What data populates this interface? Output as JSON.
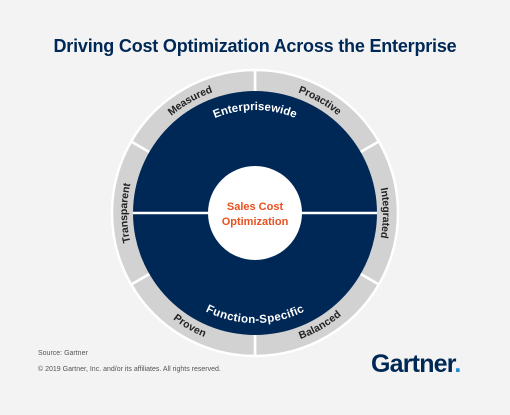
{
  "title": "Driving Cost Optimization Across the Enterprise",
  "center": {
    "line1": "Sales Cost",
    "line2": "Optimization"
  },
  "inner": {
    "top": "Enterprisewide",
    "bottom": "Function-Specific"
  },
  "ring": [
    "Proactive",
    "Integrated",
    "Balanced",
    "Proven",
    "Transparent",
    "Measured"
  ],
  "footer": {
    "source": "Source: Gartner",
    "copyright": "© 2019 Gartner, Inc. and/or its affiliates. All rights reserved."
  },
  "logo": {
    "text": "Gartner",
    "dot": "."
  },
  "colors": {
    "navy": "#002856",
    "ring": "#d2d2d2",
    "orange": "#e65120",
    "background": "#f3f3f3"
  }
}
